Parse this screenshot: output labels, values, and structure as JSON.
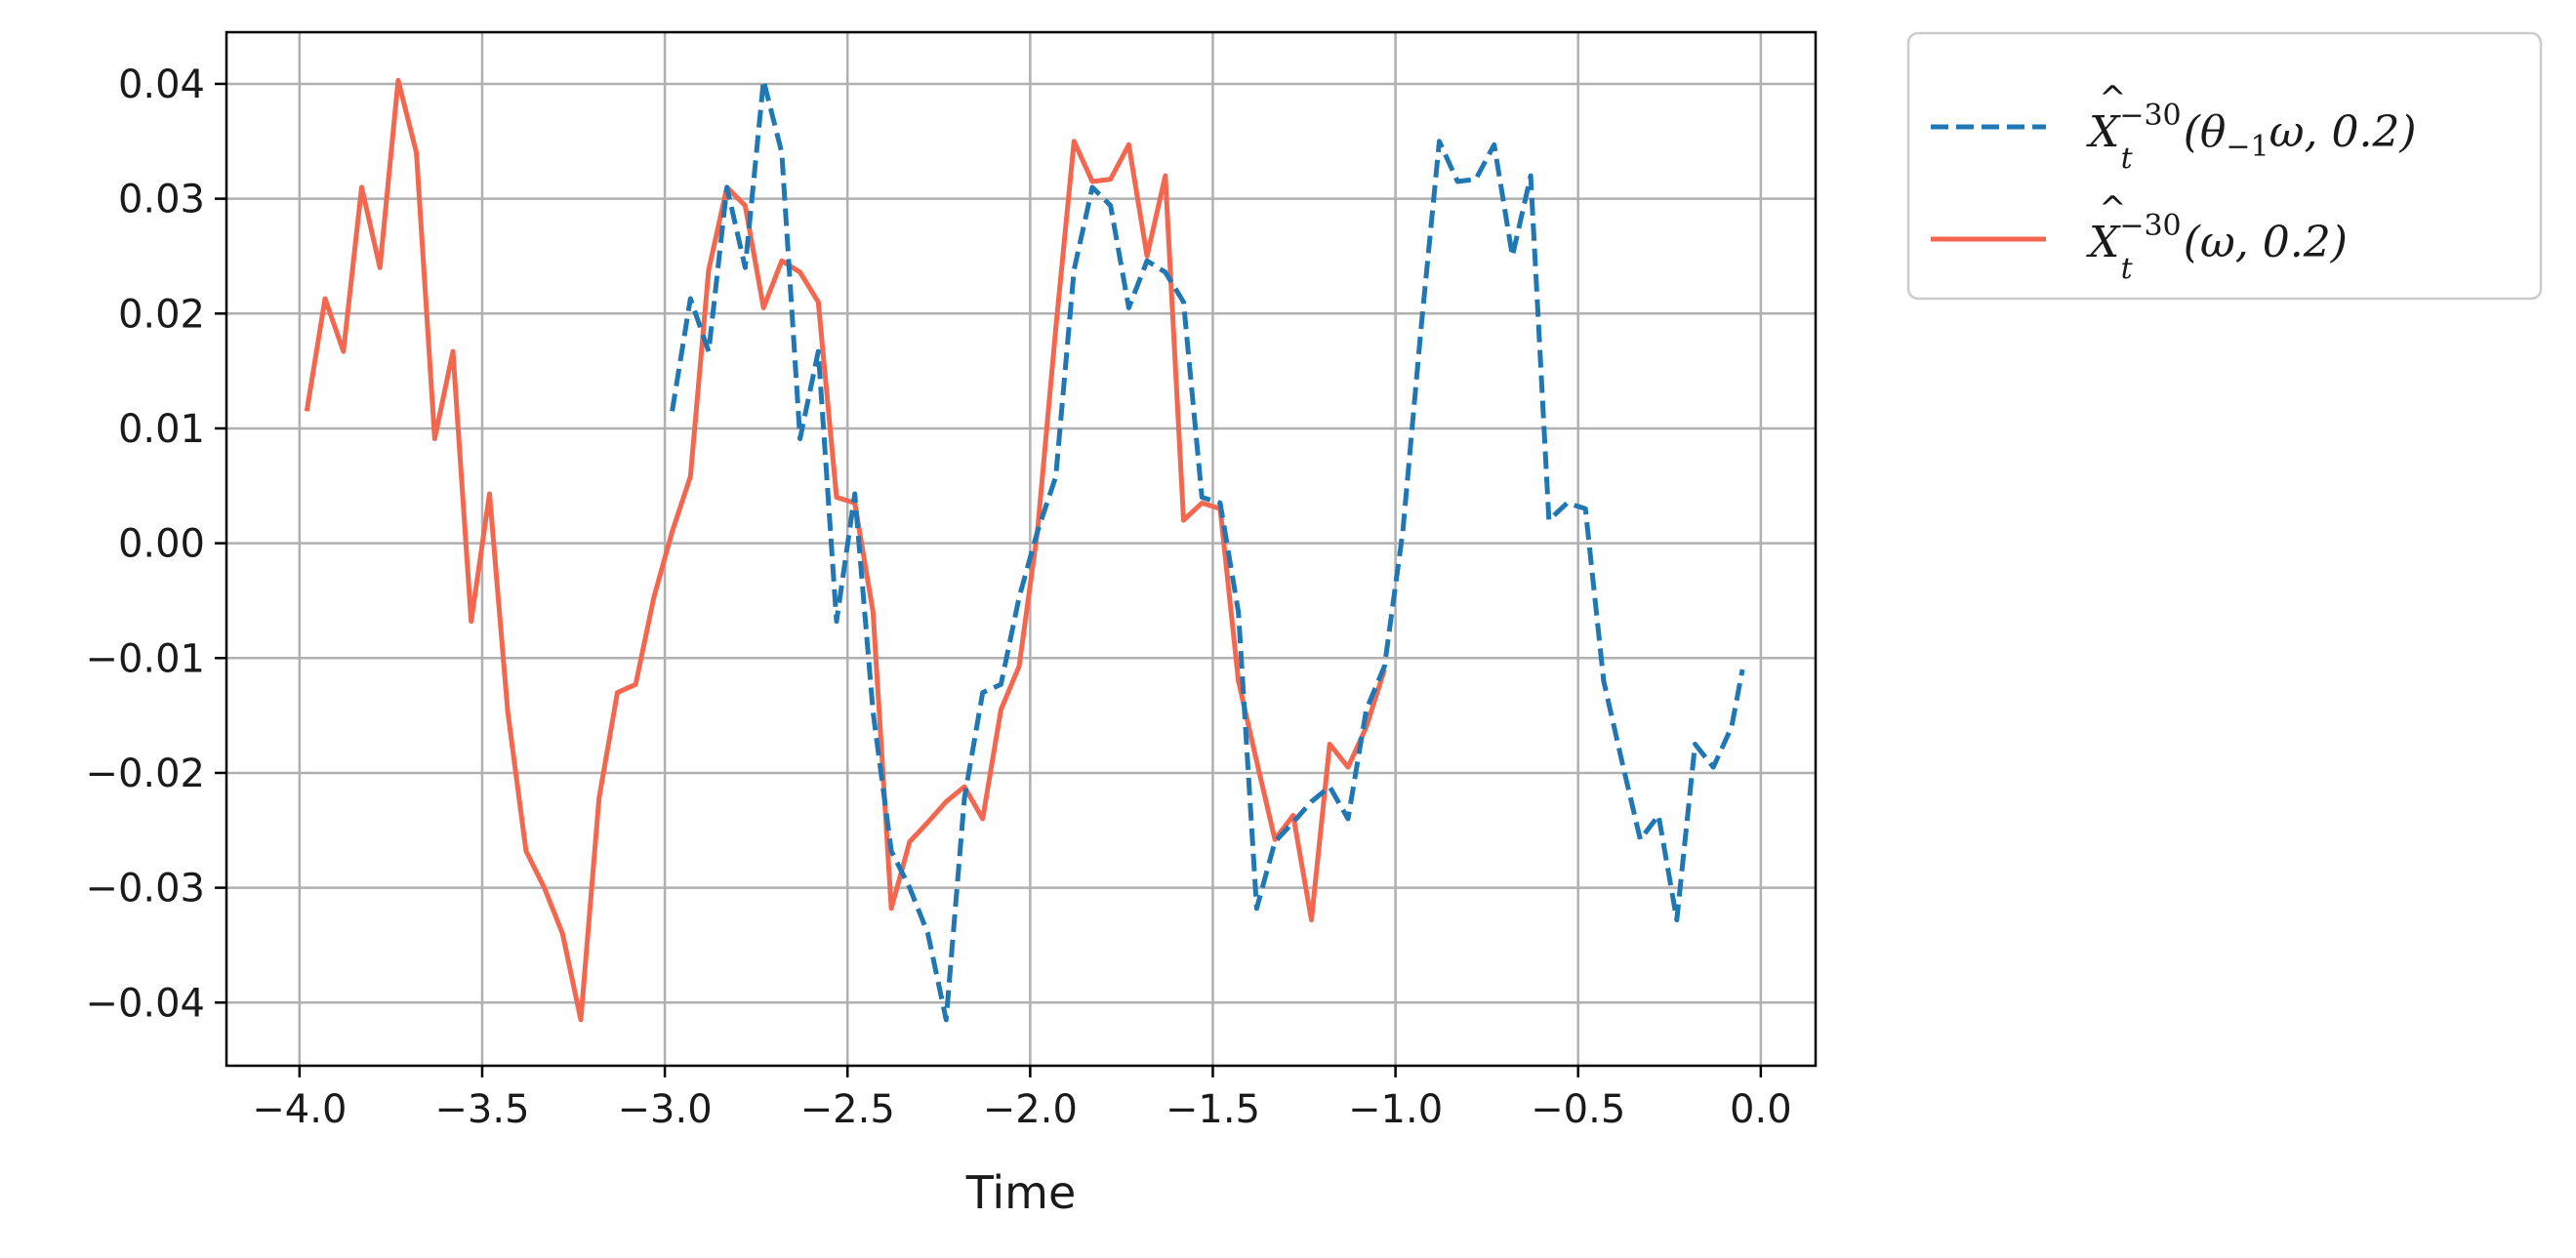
{
  "chart_data": {
    "type": "line",
    "title": "",
    "xlabel": "Time",
    "ylabel": "",
    "xlim": [
      -4.2,
      0.15
    ],
    "ylim": [
      -0.0455,
      0.0445
    ],
    "grid": true,
    "legend_position": "outside-top-right",
    "x_ticks": [
      -4.0,
      -3.5,
      -3.0,
      -2.5,
      -2.0,
      -1.5,
      -1.0,
      -0.5,
      0.0
    ],
    "x_tick_labels": [
      "−4.0",
      "−3.5",
      "−3.0",
      "−2.5",
      "−2.0",
      "−1.5",
      "−1.0",
      "−0.5",
      "0.0"
    ],
    "y_ticks": [
      0.04,
      0.03,
      0.02,
      0.01,
      0.0,
      -0.01,
      -0.02,
      -0.03,
      -0.04
    ],
    "y_tick_labels": [
      "0.04",
      "0.03",
      "0.02",
      "0.01",
      "0.00",
      "−0.01",
      "−0.02",
      "−0.03",
      "−0.04"
    ],
    "series": [
      {
        "name": "X̂_t^{-30}(θ_{-1}ω, 0.2)",
        "color": "#1f77b4",
        "style": "dashed",
        "x": [
          -2.98,
          -2.93,
          -2.88,
          -2.83,
          -2.78,
          -2.73,
          -2.68,
          -2.63,
          -2.58,
          -2.53,
          -2.48,
          -2.43,
          -2.38,
          -2.33,
          -2.28,
          -2.23,
          -2.18,
          -2.13,
          -2.08,
          -2.03,
          -1.98,
          -1.93,
          -1.88,
          -1.83,
          -1.78,
          -1.73,
          -1.68,
          -1.63,
          -1.58,
          -1.53,
          -1.48,
          -1.43,
          -1.38,
          -1.33,
          -1.28,
          -1.23,
          -1.18,
          -1.13,
          -1.08,
          -1.03,
          -0.98,
          -0.93,
          -0.88,
          -0.83,
          -0.78,
          -0.73,
          -0.68,
          -0.63,
          -0.58,
          -0.53,
          -0.48,
          -0.43,
          -0.38,
          -0.33,
          -0.28,
          -0.23,
          -0.18,
          -0.13,
          -0.08,
          -0.05
        ],
        "y": [
          0.0115,
          0.0213,
          0.0167,
          0.031,
          0.024,
          0.0403,
          0.034,
          0.0091,
          0.0167,
          -0.0068,
          0.0043,
          -0.0147,
          -0.0268,
          -0.03,
          -0.034,
          -0.0415,
          -0.0222,
          -0.013,
          -0.0123,
          -0.0047,
          0.001,
          0.0058,
          0.0238,
          0.031,
          0.0294,
          0.0205,
          0.0246,
          0.0236,
          0.021,
          0.004,
          0.0035,
          -0.006,
          -0.0318,
          -0.026,
          -0.0243,
          -0.0225,
          -0.0212,
          -0.024,
          -0.0145,
          -0.0107,
          0.001,
          0.0187,
          0.035,
          0.0315,
          0.0317,
          0.0347,
          0.025,
          0.032,
          0.002,
          0.0035,
          0.003,
          -0.012,
          -0.019,
          -0.0258,
          -0.0237,
          -0.0328,
          -0.0175,
          -0.0195,
          -0.016,
          -0.011
        ]
      },
      {
        "name": "X̂_t^{-30}(ω, 0.2)",
        "color": "#f4674e",
        "style": "solid",
        "x": [
          -3.98,
          -3.93,
          -3.88,
          -3.83,
          -3.78,
          -3.73,
          -3.68,
          -3.63,
          -3.58,
          -3.53,
          -3.48,
          -3.43,
          -3.38,
          -3.33,
          -3.28,
          -3.23,
          -3.18,
          -3.13,
          -3.08,
          -3.03,
          -2.98,
          -2.93,
          -2.88,
          -2.83,
          -2.78,
          -2.73,
          -2.68,
          -2.63,
          -2.58,
          -2.53,
          -2.48,
          -2.43,
          -2.38,
          -2.33,
          -2.28,
          -2.23,
          -2.18,
          -2.13,
          -2.08,
          -2.03,
          -1.98,
          -1.93,
          -1.88,
          -1.83,
          -1.78,
          -1.73,
          -1.68,
          -1.63,
          -1.58,
          -1.53,
          -1.48,
          -1.43,
          -1.38,
          -1.33,
          -1.28,
          -1.23,
          -1.18,
          -1.13,
          -1.08,
          -1.03
        ],
        "y": [
          0.0115,
          0.0213,
          0.0167,
          0.031,
          0.024,
          0.0403,
          0.034,
          0.0091,
          0.0167,
          -0.0068,
          0.0043,
          -0.0147,
          -0.0268,
          -0.03,
          -0.034,
          -0.0415,
          -0.0222,
          -0.013,
          -0.0123,
          -0.0047,
          0.001,
          0.0058,
          0.0238,
          0.031,
          0.0294,
          0.0205,
          0.0246,
          0.0236,
          0.021,
          0.004,
          0.0035,
          -0.006,
          -0.0318,
          -0.026,
          -0.0243,
          -0.0225,
          -0.0212,
          -0.024,
          -0.0145,
          -0.0107,
          0.001,
          0.0187,
          0.035,
          0.0315,
          0.0317,
          0.0347,
          0.025,
          0.032,
          0.002,
          0.0035,
          0.003,
          -0.012,
          -0.019,
          -0.0258,
          -0.0237,
          -0.0328,
          -0.0175,
          -0.0195,
          -0.016,
          -0.011
        ]
      }
    ]
  },
  "legend": {
    "items": [
      {
        "label_base": "X",
        "label_super": "−30",
        "label_sub": "t",
        "label_args": "(θ",
        "label_args_sub": "−1",
        "label_args_tail": "ω, 0.2)"
      },
      {
        "label_base": "X",
        "label_super": "−30",
        "label_sub": "t",
        "label_args": "(ω, 0.2)",
        "label_args_sub": "",
        "label_args_tail": ""
      }
    ]
  }
}
